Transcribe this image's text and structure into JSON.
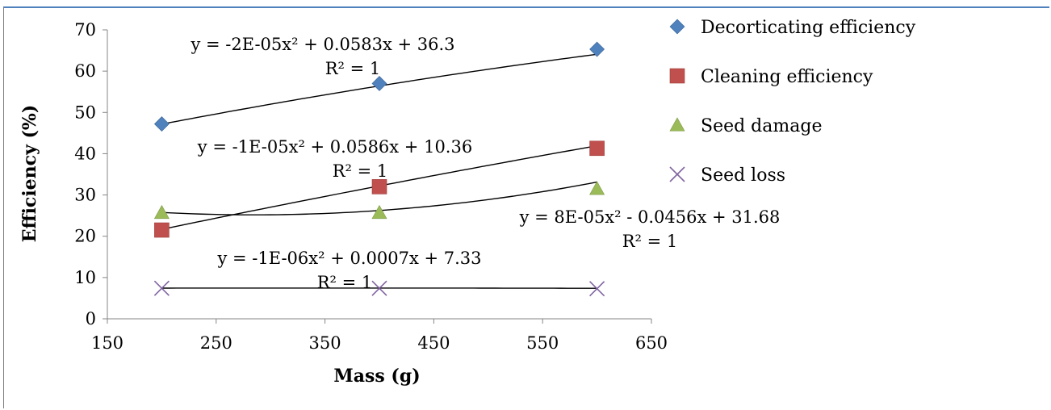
{
  "chart_data": {
    "type": "scatter",
    "title": "",
    "xlabel": "Mass (g)",
    "ylabel": "Efficiency (%)",
    "xlim": [
      150,
      650
    ],
    "ylim": [
      0,
      70
    ],
    "xticks": [
      "150",
      "250",
      "350",
      "450",
      "550",
      "650"
    ],
    "yticks": [
      "0",
      "10",
      "20",
      "30",
      "40",
      "50",
      "60",
      "70"
    ],
    "grid": false,
    "legend_position": "right",
    "series": [
      {
        "name": "Decorticating efficiency",
        "marker": "diamond",
        "color": "#4f81bd",
        "x": [
          200,
          400,
          600
        ],
        "y": [
          47.2,
          57,
          65.3
        ],
        "trendline": {
          "type": "polynomial",
          "a": -2e-05,
          "b": 0.0583,
          "c": 36.3,
          "equation": "y = -2E-05x² + 0.0583x + 36.3",
          "r2": "R² = 1"
        }
      },
      {
        "name": "Cleaning efficiency",
        "marker": "square",
        "color": "#c0504d",
        "x": [
          200,
          400,
          600
        ],
        "y": [
          21.5,
          32,
          41.3
        ],
        "trendline": {
          "type": "polynomial",
          "a": -1e-05,
          "b": 0.0586,
          "c": 10.36,
          "equation": "y = -1E-05x² + 0.0586x + 10.36",
          "r2": "R² = 1"
        }
      },
      {
        "name": "Seed damage",
        "marker": "triangle",
        "color": "#9bbb59",
        "x": [
          200,
          400,
          600
        ],
        "y": [
          25.7,
          25.7,
          31.5
        ],
        "trendline": {
          "type": "polynomial",
          "a": 8e-05,
          "b": -0.0456,
          "c": 31.68,
          "equation": "y = 8E-05x² - 0.0456x + 31.68",
          "r2": "R² = 1"
        }
      },
      {
        "name": "Seed loss",
        "marker": "x",
        "color": "#8064a2",
        "x": [
          200,
          400,
          600
        ],
        "y": [
          7.4,
          7.4,
          7.3
        ],
        "trendline": {
          "type": "polynomial",
          "a": -1e-06,
          "b": 0.0007,
          "c": 7.33,
          "equation": "y = -1E-06x² + 0.0007x + 7.33",
          "r2": "R² = 1"
        }
      }
    ]
  }
}
